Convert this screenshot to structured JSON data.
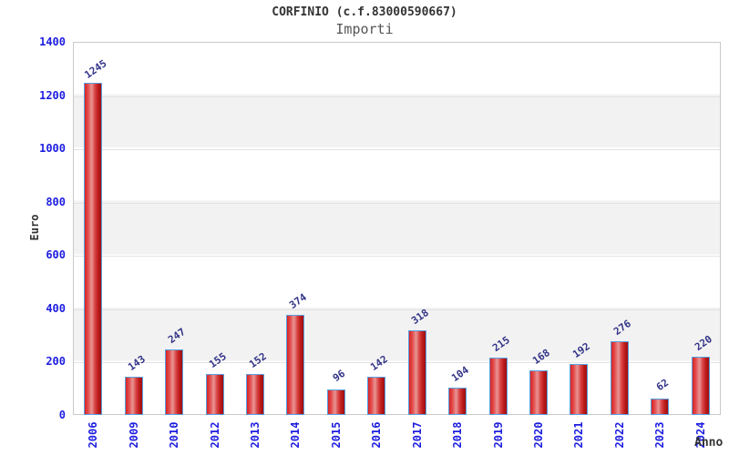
{
  "header": {
    "title": "CORFINIO (c.f.83000590667)",
    "subtitle": "Importi"
  },
  "chart_data": {
    "type": "bar",
    "title": "CORFINIO (c.f.83000590667)",
    "subtitle": "Importi",
    "xlabel": "Anno",
    "ylabel": "Euro",
    "categories": [
      "2006",
      "2009",
      "2010",
      "2012",
      "2013",
      "2014",
      "2015",
      "2016",
      "2017",
      "2018",
      "2019",
      "2020",
      "2021",
      "2022",
      "2023",
      "2024"
    ],
    "values": [
      1245,
      143,
      247,
      155,
      152,
      374,
      96,
      142,
      318,
      104,
      215,
      168,
      192,
      276,
      62,
      220
    ],
    "ylim": [
      0,
      1400
    ],
    "yticks": [
      0,
      200,
      400,
      600,
      800,
      1000,
      1200,
      1400
    ],
    "grid": "horizontal-gridlines-with-alternating-bands",
    "legend": "none",
    "colors": {
      "bar_fill_main": "#d42626",
      "bar_fill_highlight": "#e89595",
      "bar_fill_dark": "#9c0f0f",
      "bar_border": "#58a0e2",
      "tick_label": "#1d1de0",
      "value_label": "#333388",
      "band": "#f2f2f2",
      "gridline": "#e2e2e2",
      "frame": "#c9c9c9",
      "title": "#333333",
      "subtitle": "#555555",
      "axis_title": "#333333"
    }
  }
}
